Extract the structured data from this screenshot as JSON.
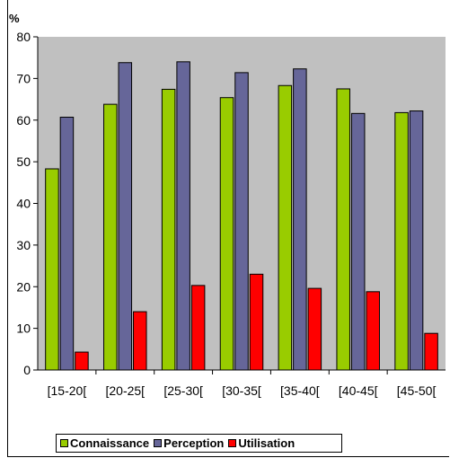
{
  "chart_data": {
    "type": "bar",
    "ylabel": "%",
    "ylim": [
      0,
      80
    ],
    "yticks": [
      0,
      10,
      20,
      30,
      40,
      50,
      60,
      70,
      80
    ],
    "categories": [
      "[15-20[",
      "[20-25[",
      "[25-30[",
      "[30-35[",
      "[35-40[",
      "[40-45[",
      "[45-50["
    ],
    "series": [
      {
        "name": "Connaissance",
        "color": "#99cc00",
        "values": [
          48.3,
          63.8,
          67.4,
          65.4,
          68.3,
          67.5,
          61.8
        ]
      },
      {
        "name": "Perception",
        "color": "#666699",
        "values": [
          60.7,
          73.8,
          74.0,
          71.4,
          72.3,
          61.6,
          62.2
        ]
      },
      {
        "name": "Utilisation",
        "color": "#ff0000",
        "values": [
          4.3,
          14.0,
          20.3,
          23.0,
          19.6,
          18.8,
          8.8
        ]
      }
    ],
    "grid": false,
    "legend_position": "bottom",
    "plot_background": "#c0c0c0"
  }
}
